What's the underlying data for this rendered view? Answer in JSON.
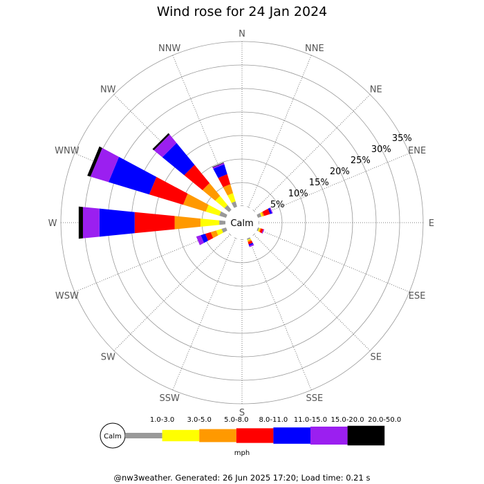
{
  "title": "Wind rose for 24 Jan 2024",
  "footer": "@nw3weather. Generated: 26 Jun 2025 17:20; Load time: 0.21 s",
  "calm_label": "Calm",
  "legend_calm_label": "Calm",
  "unit": "mph",
  "chart_data": {
    "type": "wind-rose",
    "title": "Wind rose for 24 Jan 2024",
    "directions": [
      "N",
      "NNE",
      "NE",
      "ENE",
      "E",
      "ESE",
      "SE",
      "SSE",
      "S",
      "SSW",
      "SW",
      "WSW",
      "W",
      "WNW",
      "NW",
      "NNW"
    ],
    "radial_ticks": [
      "5%",
      "10%",
      "15%",
      "20%",
      "25%",
      "30%",
      "35%"
    ],
    "radial_max": 35,
    "speed_bins": [
      {
        "label": "1.0-3.0",
        "color": "#999999"
      },
      {
        "label": "3.0-5.0",
        "color": "#ffff00"
      },
      {
        "label": "5.0-8.0",
        "color": "#ff9900"
      },
      {
        "label": "8.0-11.0",
        "color": "#ff0000"
      },
      {
        "label": "11.0-15.0",
        "color": "#0000ff"
      },
      {
        "label": "15.0-20.0",
        "color": "#9b1ff0"
      },
      {
        "label": "20.0-50.0",
        "color": "#000000"
      }
    ],
    "unit": "mph",
    "series": [
      {
        "direction": "N",
        "values": [
          0.1,
          0,
          0,
          0,
          0,
          0,
          0
        ]
      },
      {
        "direction": "NNE",
        "values": [
          0.1,
          0,
          0,
          0,
          0,
          0,
          0
        ]
      },
      {
        "direction": "NE",
        "values": [
          0.1,
          0,
          0,
          0,
          0,
          0,
          0
        ]
      },
      {
        "direction": "ENE",
        "values": [
          0.8,
          0.3,
          0.3,
          1.3,
          0.4,
          0.2,
          0
        ]
      },
      {
        "direction": "E",
        "values": [
          0.1,
          0,
          0,
          0,
          0,
          0,
          0
        ]
      },
      {
        "direction": "ESE",
        "values": [
          0.3,
          0.2,
          0.2,
          0.5,
          0,
          0.2,
          0
        ]
      },
      {
        "direction": "SE",
        "values": [
          0.1,
          0,
          0,
          0,
          0,
          0,
          0
        ]
      },
      {
        "direction": "SSE",
        "values": [
          0.3,
          0.2,
          0.3,
          0.5,
          0.3,
          0.3,
          0
        ]
      },
      {
        "direction": "S",
        "values": [
          0.1,
          0,
          0,
          0,
          0,
          0,
          0
        ]
      },
      {
        "direction": "SSW",
        "values": [
          0.1,
          0,
          0,
          0,
          0,
          0,
          0
        ]
      },
      {
        "direction": "SW",
        "values": [
          0.1,
          0,
          0,
          0,
          0,
          0,
          0
        ]
      },
      {
        "direction": "WSW",
        "values": [
          1.0,
          1.2,
          1.2,
          1.2,
          1.0,
          1.0,
          0
        ]
      },
      {
        "direction": "W",
        "values": [
          1.3,
          4.0,
          5.5,
          8.5,
          7.5,
          3.5,
          0.9
        ]
      },
      {
        "direction": "WNW",
        "values": [
          1.5,
          3.0,
          5.0,
          7.5,
          9.0,
          4.0,
          0.7
        ]
      },
      {
        "direction": "NW",
        "values": [
          1.3,
          2.5,
          3.5,
          5.0,
          6.0,
          2.3,
          0.4
        ]
      },
      {
        "direction": "NNW",
        "values": [
          1.2,
          1.8,
          2.0,
          2.2,
          2.2,
          0.3,
          0.1
        ]
      }
    ]
  }
}
